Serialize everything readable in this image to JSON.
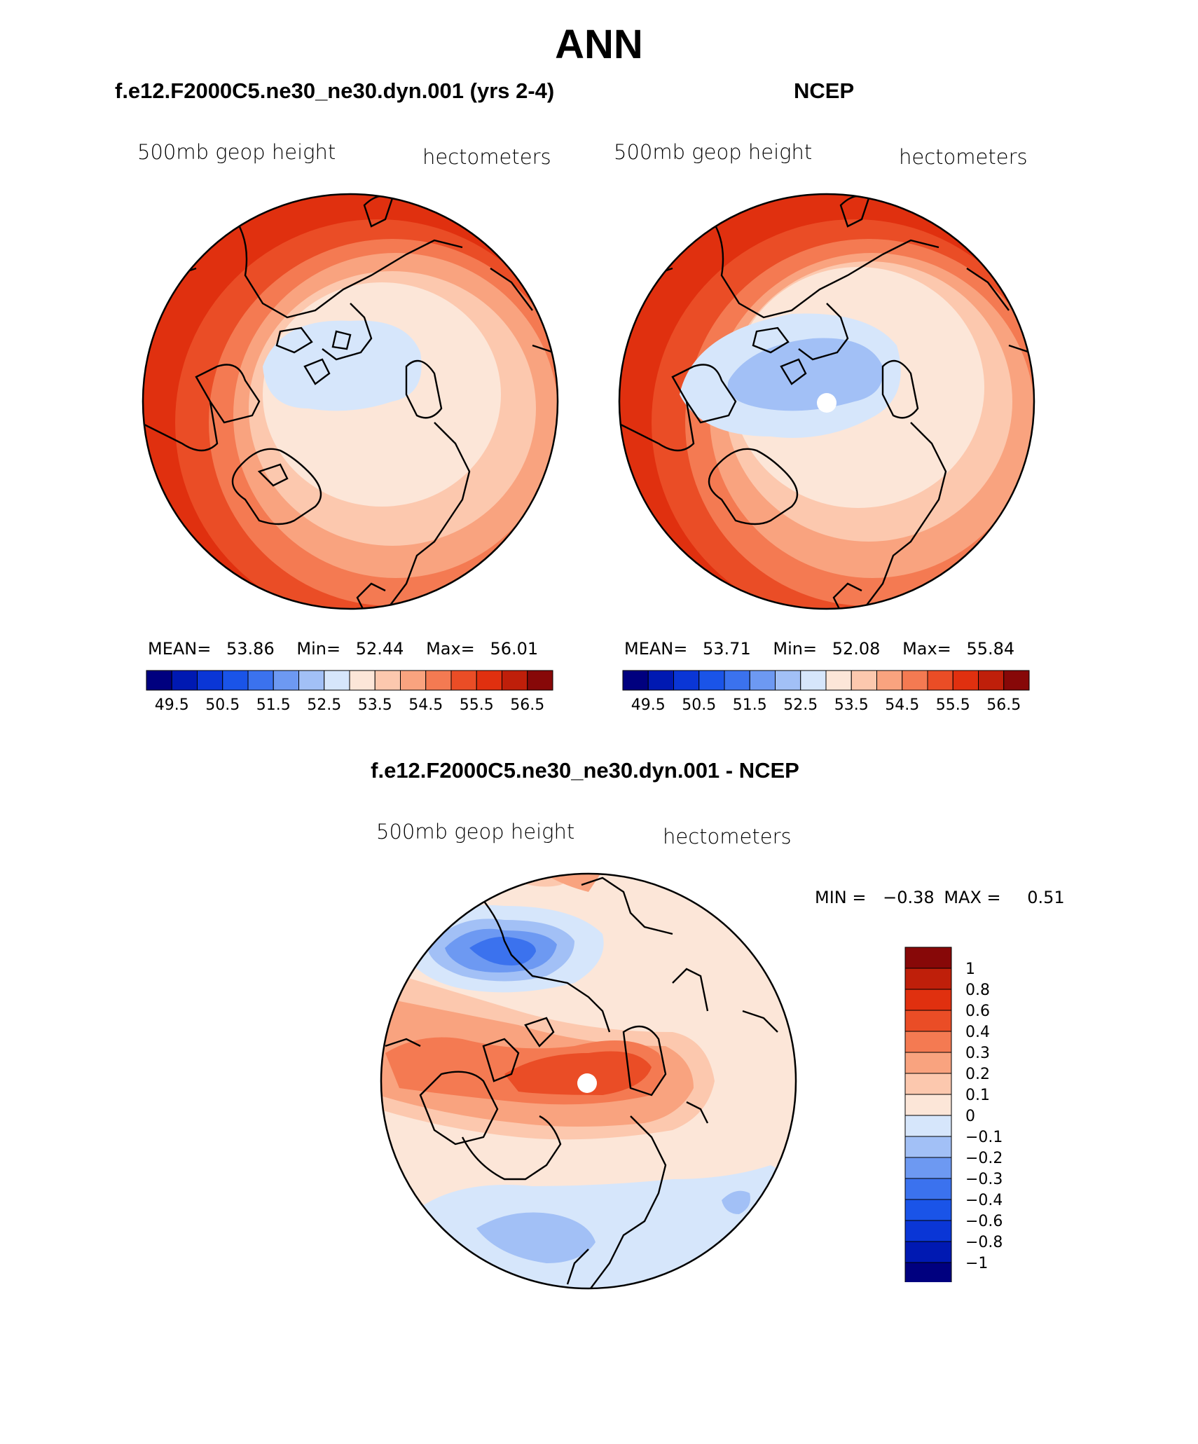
{
  "title": "ANN",
  "palette": [
    "#00007f",
    "#0019b2",
    "#0a36d6",
    "#1a54e8",
    "#3b72ee",
    "#6d99f2",
    "#a2c0f6",
    "#d6e6fb",
    "#fce6d8",
    "#fcc8ae",
    "#f9a37f",
    "#f47a52",
    "#ea4d26",
    "#e0300f",
    "#bf1f0a",
    "#870808"
  ],
  "panels": [
    {
      "title": "f.e12.F2000C5.ne30_ne30.dyn.001 (yrs 2-4)",
      "variable": "500mb geop height",
      "units": "hectometers",
      "stats": {
        "mean_label": "MEAN=",
        "mean": "53.86",
        "min_label": "Min=",
        "min": "52.44",
        "max_label": "Max=",
        "max": "56.01"
      },
      "colorbar_ticks": [
        "49.5",
        "50.5",
        "51.5",
        "52.5",
        "53.5",
        "54.5",
        "55.5",
        "56.5"
      ]
    },
    {
      "title": "NCEP",
      "variable": "500mb geop height",
      "units": "hectometers",
      "stats": {
        "mean_label": "MEAN=",
        "mean": "53.71",
        "min_label": "Min=",
        "min": "52.08",
        "max_label": "Max=",
        "max": "55.84"
      },
      "colorbar_ticks": [
        "49.5",
        "50.5",
        "51.5",
        "52.5",
        "53.5",
        "54.5",
        "55.5",
        "56.5"
      ]
    }
  ],
  "diff": {
    "title": "f.e12.F2000C5.ne30_ne30.dyn.001 - NCEP",
    "variable": "500mb geop height",
    "units": "hectometers",
    "minmax": {
      "min_label": "MIN =",
      "min": "−0.38",
      "max_label": "MAX =",
      "max": "0.51"
    },
    "levels": [
      "1",
      "0.8",
      "0.6",
      "0.4",
      "0.3",
      "0.2",
      "0.1",
      "0",
      "−0.1",
      "−0.2",
      "−0.3",
      "−0.4",
      "−0.6",
      "−0.8",
      "−1"
    ],
    "colors_top_to_bottom": [
      "#870808",
      "#bf1f0a",
      "#e0300f",
      "#ea4d26",
      "#f47a52",
      "#f9a37f",
      "#fcc8ae",
      "#fce6d8",
      "#d6e6fb",
      "#a2c0f6",
      "#6d99f2",
      "#3b72ee",
      "#1a54e8",
      "#0a36d6",
      "#0019b2",
      "#00007f"
    ]
  }
}
